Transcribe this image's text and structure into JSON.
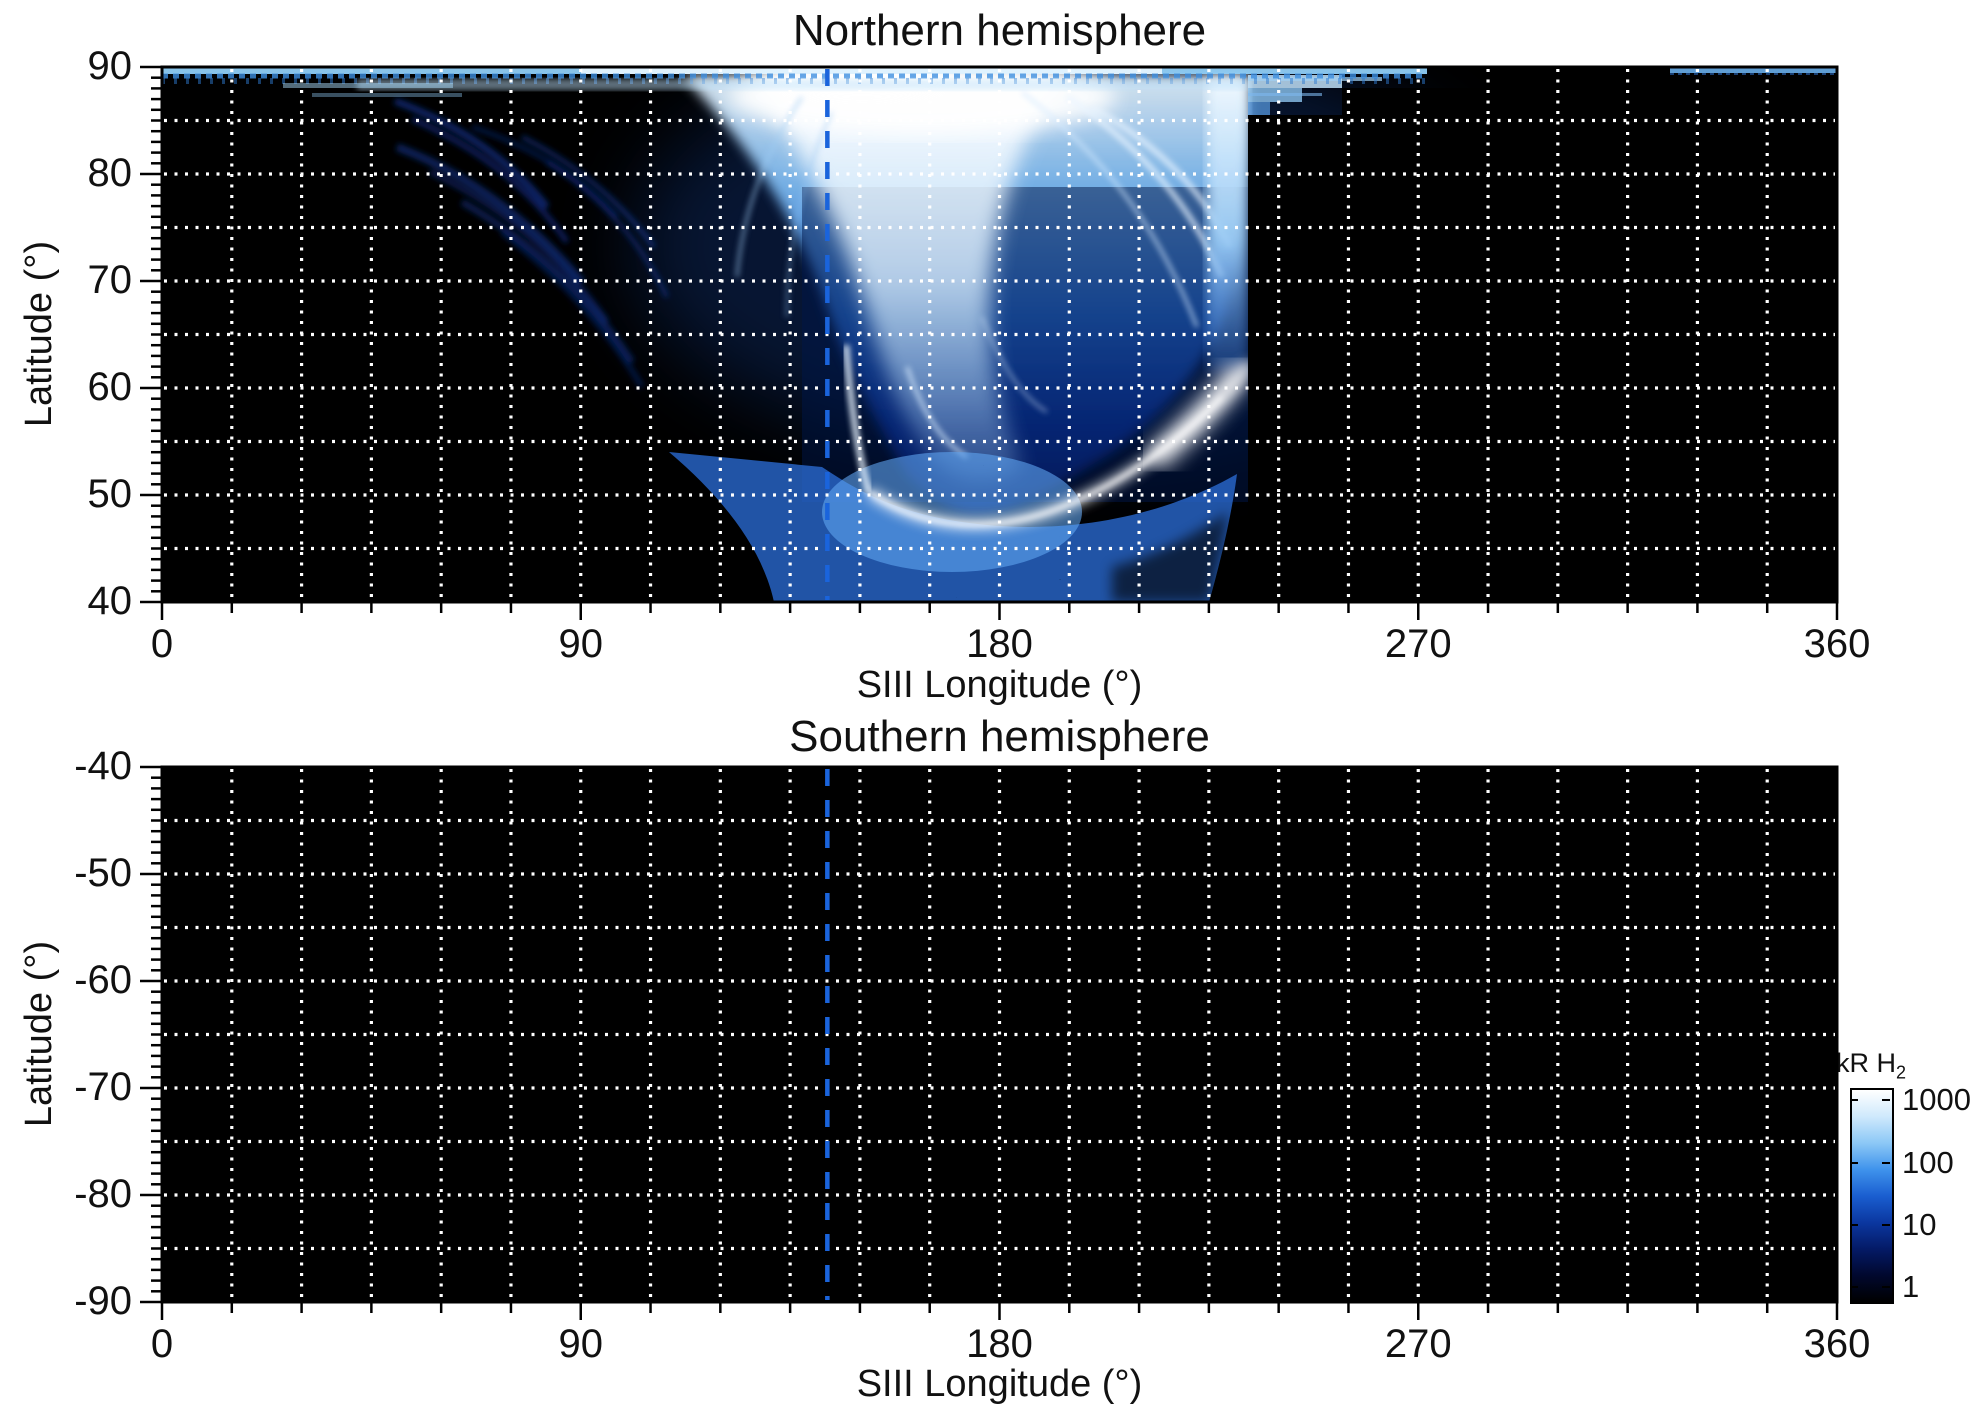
{
  "figure": {
    "kind": "auroral emission maps, cylindrical projection, two hemispheres",
    "background_color": "#ffffff"
  },
  "chart_data": {
    "type": "heatmap",
    "panels": [
      {
        "key": "north",
        "title": "Northern hemisphere",
        "xlabel": "SIII Longitude (°)",
        "ylabel": "Latitude (°)",
        "xlim": [
          0,
          360
        ],
        "ylim": [
          40,
          90
        ],
        "xtick_labels": [
          "0",
          "90",
          "180",
          "270",
          "360"
        ],
        "xtick_values": [
          0,
          90,
          180,
          270,
          360
        ],
        "xtick_minor_step_deg": 15,
        "ytick_labels": [
          "90",
          "80",
          "70",
          "60",
          "50",
          "40"
        ],
        "ytick_values": [
          90,
          80,
          70,
          60,
          50,
          40
        ],
        "ytick_minor_step_deg": 1,
        "grid": {
          "x_step_deg": 15,
          "y_step_deg": 5,
          "style": "dotted",
          "color": "#ffffff"
        },
        "meridian_marker": {
          "longitude_deg": 143,
          "style": "dashed",
          "color": "#1a64dc"
        },
        "background_color": "#000000",
        "features": [
          {
            "name": "polar-cap band",
            "lon_deg": [
              0,
              272
            ],
            "lat_deg": [
              89,
              90
            ],
            "intensity_kR": "100-1000"
          },
          {
            "name": "polar-cap band segment",
            "lon_deg": [
              324,
              360
            ],
            "lat_deg": [
              89,
              90
            ],
            "intensity_kR": "~100"
          },
          {
            "name": "bright auroral funnel / oval",
            "lon_deg": [
              100,
              233
            ],
            "lat_deg": [
              55,
              90
            ],
            "intensity_kR": "100-1000",
            "note": "white core 130-180 deg above lat 83"
          },
          {
            "name": "bright arc (swoosh)",
            "path_deg": [
              [
                152,
                54
              ],
              [
                178,
                55
              ],
              [
                205,
                63
              ],
              [
                230,
                70
              ]
            ],
            "intensity_kR": "~1000"
          },
          {
            "name": "diffuse speckled emission column",
            "lon_deg": [
              110,
              230
            ],
            "lat_deg": [
              40,
              56
            ],
            "intensity_kR": "3-100"
          },
          {
            "name": "faint striated arcs",
            "lon_deg": [
              45,
              110
            ],
            "lat_deg": [
              62,
              88
            ],
            "intensity_kR": "1-10"
          },
          {
            "name": "sharp data cutoff",
            "lon_deg": 233,
            "lat_deg": [
              40,
              88
            ]
          }
        ]
      },
      {
        "key": "south",
        "title": "Southern hemisphere",
        "xlabel": "SIII Longitude (°)",
        "ylabel": "Latitude (°)",
        "xlim": [
          0,
          360
        ],
        "ylim": [
          -90,
          -40
        ],
        "xtick_labels": [
          "0",
          "90",
          "180",
          "270",
          "360"
        ],
        "xtick_values": [
          0,
          90,
          180,
          270,
          360
        ],
        "xtick_minor_step_deg": 15,
        "ytick_labels": [
          "-40",
          "-50",
          "-60",
          "-70",
          "-80",
          "-90"
        ],
        "ytick_values": [
          -40,
          -50,
          -60,
          -70,
          -80,
          -90
        ],
        "ytick_minor_step_deg": 1,
        "grid": {
          "x_step_deg": 15,
          "y_step_deg": 5,
          "style": "dotted",
          "color": "#ffffff"
        },
        "meridian_marker": {
          "longitude_deg": 143,
          "style": "dashed",
          "color": "#1a64dc"
        },
        "background_color": "#000000",
        "features": [
          {
            "name": "no auroral emission visible",
            "intensity_kR": "<1"
          }
        ]
      }
    ],
    "colorbar": {
      "title_main": "kR H",
      "title_subscript": "2",
      "scale": "log",
      "tick_labels": [
        "1000",
        "100",
        "10",
        "1"
      ],
      "tick_values": [
        1000,
        100,
        10,
        1
      ],
      "value_top": 1585,
      "value_bottom": 0.63,
      "gradient_top_to_bottom": [
        "#ffffff",
        "#cfe9fc",
        "#8cc8f6",
        "#3f93ec",
        "#1a5ed0",
        "#0b37a0",
        "#041a66",
        "#01082e",
        "#000000"
      ]
    }
  }
}
